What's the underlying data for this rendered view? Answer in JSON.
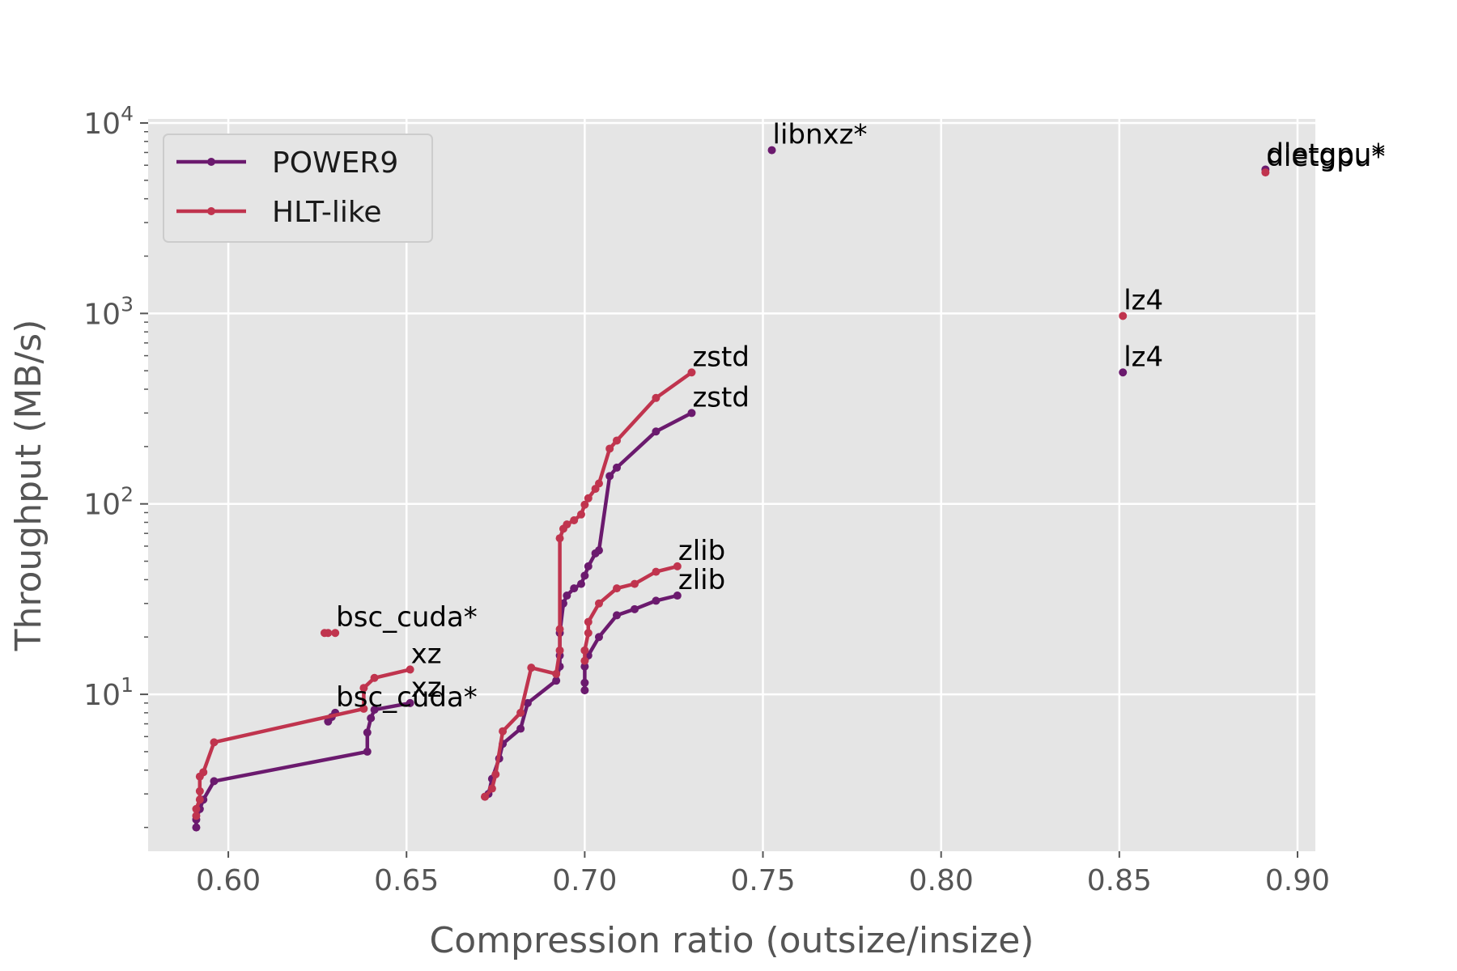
{
  "chart_data": {
    "type": "line",
    "title": "",
    "xlabel": "Compression ratio (outsize/insize)",
    "ylabel": "Throughput (MB/s)",
    "xlim": [
      0.5775,
      0.905
    ],
    "ylim": [
      1.5,
      10500
    ],
    "yscale": "log",
    "grid": true,
    "legend_position": "top-left",
    "x_ticks": [
      "0.60",
      "0.65",
      "0.70",
      "0.75",
      "0.80",
      "0.85",
      "0.90"
    ],
    "y_ticks": [
      {
        "base": "10",
        "exp": "1",
        "value": 10
      },
      {
        "base": "10",
        "exp": "2",
        "value": 100
      },
      {
        "base": "10",
        "exp": "3",
        "value": 1000
      },
      {
        "base": "10",
        "exp": "4",
        "value": 10000
      }
    ],
    "colors": {
      "POWER9": "#6b1a6e",
      "HLT-like": "#c0344e",
      "background": "#e5e5e5",
      "grid": "#ffffff"
    },
    "series": [
      {
        "name": "POWER9",
        "segments": [
          {
            "label": "xz",
            "points": [
              [
                0.591,
                2.0
              ],
              [
                0.591,
                2.2
              ],
              [
                0.592,
                2.5
              ],
              [
                0.593,
                2.8
              ],
              [
                0.596,
                3.5
              ],
              [
                0.639,
                5.0
              ],
              [
                0.639,
                6.3
              ],
              [
                0.64,
                7.5
              ],
              [
                0.641,
                8.3
              ],
              [
                0.651,
                9.0
              ]
            ]
          },
          {
            "label": "bsc_cuda*",
            "points": [
              [
                0.628,
                7.2
              ],
              [
                0.629,
                7.6
              ],
              [
                0.63,
                8.0
              ]
            ]
          },
          {
            "label": "zstd",
            "points": [
              [
                0.672,
                2.9
              ],
              [
                0.673,
                3.0
              ],
              [
                0.674,
                3.6
              ],
              [
                0.676,
                4.6
              ],
              [
                0.677,
                5.5
              ],
              [
                0.682,
                6.6
              ],
              [
                0.684,
                9.0
              ],
              [
                0.692,
                11.8
              ],
              [
                0.693,
                14.0
              ],
              [
                0.693,
                16.0
              ],
              [
                0.693,
                21.0
              ],
              [
                0.694,
                30.0
              ],
              [
                0.695,
                33.0
              ],
              [
                0.697,
                36.0
              ],
              [
                0.699,
                38.0
              ],
              [
                0.7,
                42.0
              ],
              [
                0.701,
                47.0
              ],
              [
                0.703,
                55.0
              ],
              [
                0.704,
                57.0
              ],
              [
                0.707,
                140.0
              ],
              [
                0.709,
                155.0
              ],
              [
                0.72,
                240.0
              ],
              [
                0.73,
                300.0
              ]
            ]
          },
          {
            "label": "zlib",
            "points": [
              [
                0.7,
                10.5
              ],
              [
                0.7,
                11.5
              ],
              [
                0.7,
                14.0
              ],
              [
                0.701,
                16.0
              ],
              [
                0.704,
                20.0
              ],
              [
                0.709,
                26.0
              ],
              [
                0.714,
                28.0
              ],
              [
                0.72,
                31.0
              ],
              [
                0.726,
                33.0
              ]
            ]
          },
          {
            "label": "libnxz*",
            "points": [
              [
                0.7525,
                7200
              ]
            ]
          },
          {
            "label": "lz4",
            "points": [
              [
                0.851,
                490
              ]
            ]
          },
          {
            "label": "dietgpu*",
            "points": [
              [
                0.891,
                5700
              ]
            ]
          }
        ]
      },
      {
        "name": "HLT-like",
        "segments": [
          {
            "label": "xz",
            "points": [
              [
                0.591,
                2.3
              ],
              [
                0.591,
                2.5
              ],
              [
                0.592,
                2.8
              ],
              [
                0.592,
                3.1
              ],
              [
                0.592,
                3.7
              ],
              [
                0.593,
                3.9
              ],
              [
                0.596,
                5.6
              ],
              [
                0.638,
                8.4
              ],
              [
                0.638,
                10.8
              ],
              [
                0.641,
                12.2
              ],
              [
                0.651,
                13.5
              ]
            ]
          },
          {
            "label": "bsc_cuda*",
            "points": [
              [
                0.627,
                21.0
              ],
              [
                0.628,
                21.0
              ],
              [
                0.63,
                21.0
              ]
            ]
          },
          {
            "label": "zstd",
            "points": [
              [
                0.672,
                2.9
              ],
              [
                0.674,
                3.2
              ],
              [
                0.675,
                3.8
              ],
              [
                0.677,
                6.4
              ],
              [
                0.682,
                8.0
              ],
              [
                0.685,
                13.8
              ],
              [
                0.692,
                12.8
              ],
              [
                0.693,
                17.0
              ],
              [
                0.693,
                22.0
              ],
              [
                0.693,
                66.0
              ],
              [
                0.694,
                74.0
              ],
              [
                0.695,
                78.0
              ],
              [
                0.697,
                82.0
              ],
              [
                0.699,
                88.0
              ],
              [
                0.7,
                99.0
              ],
              [
                0.701,
                107.0
              ],
              [
                0.703,
                120.0
              ],
              [
                0.704,
                128.0
              ],
              [
                0.707,
                195.0
              ],
              [
                0.709,
                215.0
              ],
              [
                0.72,
                360.0
              ],
              [
                0.73,
                490.0
              ]
            ]
          },
          {
            "label": "zlib",
            "points": [
              [
                0.7,
                15.0
              ],
              [
                0.7,
                17.0
              ],
              [
                0.701,
                21.0
              ],
              [
                0.701,
                24.0
              ],
              [
                0.704,
                30.0
              ],
              [
                0.709,
                36.0
              ],
              [
                0.714,
                38.0
              ],
              [
                0.72,
                44.0
              ],
              [
                0.726,
                47.0
              ]
            ]
          },
          {
            "label": "lz4",
            "points": [
              [
                0.851,
                970
              ]
            ]
          },
          {
            "label": "dietgpu*",
            "points": [
              [
                0.891,
                5500
              ]
            ]
          }
        ]
      }
    ],
    "annotations": [
      {
        "text": "libnxz*",
        "x": 0.7525,
        "y": 7200
      },
      {
        "text": "dietgpu*",
        "x": 0.891,
        "y": 5700
      },
      {
        "text": "dietgpu*",
        "x": 0.891,
        "y": 5500
      },
      {
        "text": "lz4",
        "x": 0.851,
        "y": 970
      },
      {
        "text": "lz4",
        "x": 0.851,
        "y": 490
      },
      {
        "text": "zstd",
        "x": 0.73,
        "y": 490
      },
      {
        "text": "zstd",
        "x": 0.73,
        "y": 300
      },
      {
        "text": "zlib",
        "x": 0.726,
        "y": 47
      },
      {
        "text": "zlib",
        "x": 0.726,
        "y": 33
      },
      {
        "text": "bsc_cuda*",
        "x": 0.63,
        "y": 21
      },
      {
        "text": "bsc_cuda*",
        "x": 0.63,
        "y": 8.0
      },
      {
        "text": "xz",
        "x": 0.651,
        "y": 13.5
      },
      {
        "text": "xz",
        "x": 0.651,
        "y": 9.0
      }
    ]
  }
}
